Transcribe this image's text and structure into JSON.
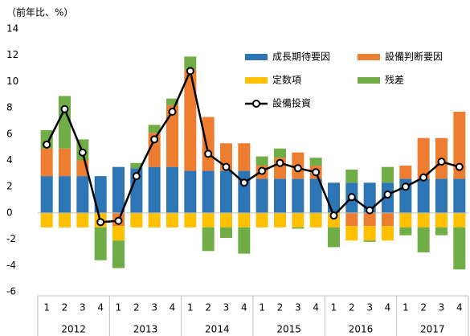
{
  "chart_data": {
    "type": "bar",
    "y_label": "（前年比、%）",
    "categories": [
      "1",
      "2",
      "3",
      "4",
      "1",
      "2",
      "3",
      "4",
      "1",
      "2",
      "3",
      "4",
      "1",
      "2",
      "3",
      "4",
      "1",
      "2",
      "3",
      "4",
      "1",
      "2",
      "3",
      "4"
    ],
    "years": [
      "2012",
      "2013",
      "2014",
      "2015",
      "2016",
      "2017"
    ],
    "ylim": [
      -6,
      14
    ],
    "yticks": [
      -6,
      -4,
      -2,
      0,
      2,
      4,
      6,
      8,
      10,
      12,
      14
    ],
    "series": [
      {
        "name": "成長期待要因",
        "color": "#2e75b6",
        "values": [
          2.8,
          2.8,
          2.8,
          2.8,
          3.5,
          3.4,
          3.5,
          3.5,
          3.2,
          3.2,
          3.2,
          3.2,
          2.6,
          2.6,
          2.6,
          2.6,
          2.3,
          2.3,
          2.3,
          2.3,
          2.6,
          2.6,
          2.6,
          2.6
        ]
      },
      {
        "name": "設備判断要因",
        "color": "#ed7d31",
        "values": [
          2.1,
          2.1,
          1.2,
          0,
          -1.0,
          0,
          2.6,
          4.7,
          7.7,
          4.1,
          2.1,
          2.1,
          1.0,
          1.6,
          2.0,
          1.0,
          0,
          -1.0,
          -1.0,
          -1.0,
          1.0,
          3.1,
          3.1,
          5.1
        ]
      },
      {
        "name": "定数項",
        "color": "#ffc000",
        "values": [
          -1.1,
          -1.1,
          -1.1,
          -1.1,
          -1.1,
          -1.1,
          -1.1,
          -1.1,
          -1.1,
          -1.1,
          -1.1,
          -1.1,
          -1.1,
          -1.1,
          -1.1,
          -1.1,
          -1.1,
          -1.1,
          -1.1,
          -1.1,
          -1.1,
          -1.1,
          -1.1,
          -1.1
        ]
      },
      {
        "name": "残差",
        "color": "#70ad47",
        "values": [
          1.4,
          4.0,
          1.6,
          -2.5,
          -2.1,
          0.4,
          0.6,
          0.5,
          1.0,
          -1.8,
          -0.8,
          -2.0,
          0.7,
          0.7,
          -0.1,
          0.6,
          -1.5,
          1.0,
          -0.1,
          1.2,
          -0.6,
          -1.9,
          -0.6,
          -3.2
        ]
      },
      {
        "name": "設備投資",
        "type": "line",
        "color": "#000000",
        "values": [
          5.2,
          7.9,
          4.6,
          -0.7,
          -0.6,
          2.8,
          5.6,
          7.7,
          10.8,
          4.5,
          3.5,
          2.3,
          3.2,
          3.8,
          3.4,
          3.1,
          -0.2,
          1.2,
          0.2,
          1.4,
          2.0,
          2.7,
          3.9,
          3.5
        ]
      }
    ]
  }
}
